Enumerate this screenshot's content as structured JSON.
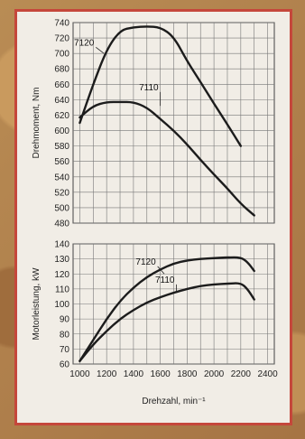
{
  "chart_data": [
    {
      "type": "line",
      "ylabel": "Drehmoment, Nm",
      "ylim": [
        480,
        740
      ],
      "yticks": [
        480,
        500,
        520,
        540,
        560,
        580,
        600,
        620,
        640,
        660,
        680,
        700,
        720,
        740
      ],
      "xlim": [
        950,
        2450
      ],
      "xticks": [
        1000,
        1200,
        1400,
        1600,
        1800,
        2000,
        2200,
        2400
      ],
      "grid": true,
      "series": [
        {
          "name": "7120",
          "x": [
            1000,
            1100,
            1200,
            1300,
            1400,
            1500,
            1600,
            1700,
            1800,
            1900,
            2000,
            2100,
            2200
          ],
          "values": [
            610,
            660,
            705,
            730,
            734,
            735,
            734,
            722,
            690,
            663,
            635,
            608,
            580
          ]
        },
        {
          "name": "7110",
          "x": [
            1000,
            1100,
            1200,
            1300,
            1400,
            1500,
            1600,
            1700,
            1800,
            1900,
            2000,
            2100,
            2200,
            2300
          ],
          "values": [
            617,
            632,
            637,
            637,
            637,
            630,
            615,
            600,
            582,
            562,
            543,
            525,
            505,
            490
          ]
        }
      ]
    },
    {
      "type": "line",
      "ylabel": "Motorleistung, kW",
      "xlabel": "Drehzahl, min⁻¹",
      "ylim": [
        60,
        140
      ],
      "yticks": [
        60,
        70,
        80,
        90,
        100,
        110,
        120,
        130,
        140
      ],
      "xlim": [
        950,
        2450
      ],
      "xticks": [
        1000,
        1200,
        1400,
        1600,
        1800,
        2000,
        2200,
        2400
      ],
      "grid": true,
      "series": [
        {
          "name": "7120",
          "x": [
            1000,
            1100,
            1200,
            1300,
            1400,
            1500,
            1600,
            1700,
            1800,
            1900,
            2000,
            2100,
            2200,
            2250,
            2300
          ],
          "values": [
            62,
            76,
            90,
            102,
            111,
            118,
            123,
            127,
            129,
            130,
            130.5,
            131,
            131,
            128,
            122
          ]
        },
        {
          "name": "7110",
          "x": [
            1000,
            1100,
            1200,
            1300,
            1400,
            1500,
            1600,
            1700,
            1800,
            1900,
            2000,
            2100,
            2200,
            2250,
            2300
          ],
          "values": [
            62,
            73,
            82,
            90,
            96,
            101,
            104.5,
            107.5,
            110,
            112,
            113,
            113.5,
            114,
            110,
            103
          ]
        }
      ]
    }
  ]
}
